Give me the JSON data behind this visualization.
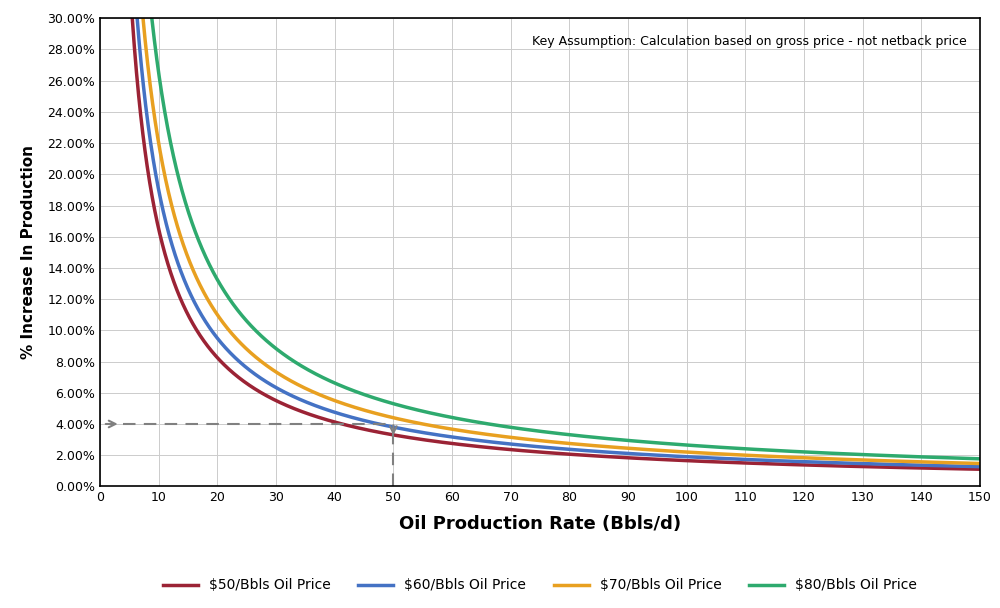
{
  "title": "",
  "xlabel": "Oil Production Rate (Bbls/d)",
  "ylabel": "% Increase In Production",
  "annotation_text": "Key Assumption: Calculation based on gross price - not netback price",
  "x_ticks": [
    0,
    10,
    20,
    30,
    40,
    50,
    60,
    70,
    80,
    90,
    100,
    110,
    120,
    130,
    140,
    150
  ],
  "y_ticks": [
    0.0,
    0.02,
    0.04,
    0.06,
    0.08,
    0.1,
    0.12,
    0.14,
    0.16,
    0.18,
    0.2,
    0.22,
    0.24,
    0.26,
    0.28,
    0.3
  ],
  "y_tick_labels": [
    "0.00%",
    "2.00%",
    "4.00%",
    "6.00%",
    "8.00%",
    "10.00%",
    "12.00%",
    "14.00%",
    "16.00%",
    "18.00%",
    "20.00%",
    "22.00%",
    "24.00%",
    "26.00%",
    "28.00%",
    "30.00%"
  ],
  "ylim": [
    0,
    0.3
  ],
  "xlim": [
    0,
    150
  ],
  "curves": [
    {
      "label": "$50/Bbls Oil Price",
      "color": "#9B2335",
      "C": 1.65
    },
    {
      "label": "$60/Bbls Oil Price",
      "color": "#4472C4",
      "C": 1.9
    },
    {
      "label": "$70/Bbls Oil Price",
      "color": "#E8A020",
      "C": 2.2
    },
    {
      "label": "$80/Bbls Oil Price",
      "color": "#2EAA6E",
      "C": 2.65
    }
  ],
  "dashed_line_y": 0.04,
  "dashed_line_x_end": 50,
  "vertical_line_x": 50,
  "background_color": "#FFFFFF",
  "plot_bg_color": "#FFFFFF",
  "grid_color": "#CCCCCC",
  "legend_items": [
    {
      "label": "$50/Bbls Oil Price",
      "color": "#9B2335"
    },
    {
      "label": "$60/Bbls Oil Price",
      "color": "#4472C4"
    },
    {
      "label": "$70/Bbls Oil Price",
      "color": "#E8A020"
    },
    {
      "label": "$80/Bbls Oil Price",
      "color": "#2EAA6E"
    }
  ]
}
